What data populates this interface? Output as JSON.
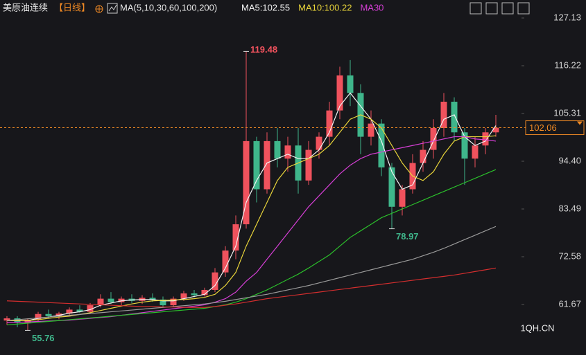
{
  "header": {
    "symbol": "美原油连续",
    "period": "【日线】",
    "indicator": "MA(5,10,30,60,100,200)"
  },
  "watermark": "1QH.CN",
  "chart_data": {
    "type": "candlestick",
    "up_color": "#f0525d",
    "down_color": "#3fb68b",
    "ylim": [
      50.13,
      131.24
    ],
    "yticks": [
      127.13,
      116.22,
      105.31,
      {
        "value": 94.4,
        "label": "94.40"
      },
      83.49,
      72.58,
      61.67
    ],
    "last_price": 102.06,
    "open": [
      58,
      58.5,
      57.5,
      58.2,
      59.5,
      59,
      59.6,
      60.5,
      60,
      61.5,
      63,
      62.2,
      63,
      62.5,
      63.2,
      62.8,
      61.5,
      63,
      64.2,
      63.8,
      65,
      69,
      74,
      80,
      99,
      88,
      99,
      95,
      98,
      90,
      97,
      100,
      106,
      114,
      110,
      100,
      103,
      93,
      84,
      88,
      94,
      97,
      102,
      108,
      101,
      95,
      98,
      101
    ],
    "high": [
      59,
      59,
      58.5,
      60,
      60.5,
      60,
      61,
      61.5,
      62,
      64,
      64.5,
      63.5,
      64,
      63.8,
      64.2,
      63.5,
      63.5,
      64.8,
      65,
      65.5,
      70,
      75,
      82,
      119.48,
      100,
      101,
      102,
      100,
      102,
      99,
      101,
      108,
      116,
      117.5,
      112,
      106,
      104,
      94,
      89,
      96,
      99,
      104,
      110,
      109,
      102,
      100,
      102,
      105
    ],
    "low": [
      57,
      56.5,
      55.76,
      57.8,
      58.5,
      58.3,
      59,
      59.8,
      59.5,
      61,
      61.8,
      61.5,
      62,
      61.8,
      62.3,
      61,
      61.2,
      62.5,
      63.3,
      63.5,
      64.5,
      68,
      72,
      79,
      85,
      87,
      93,
      92,
      87,
      89,
      95,
      98,
      104,
      107,
      96,
      98,
      91,
      78.97,
      82,
      87,
      92,
      95,
      100,
      99,
      89,
      93,
      96,
      100
    ],
    "close": [
      58.5,
      57.5,
      58.2,
      59.5,
      59,
      59.6,
      60.5,
      60,
      61.5,
      63,
      62.2,
      63,
      62.5,
      63.2,
      62.8,
      61.5,
      63,
      64.2,
      63.8,
      65,
      69,
      74,
      80,
      99,
      88,
      99,
      95,
      98,
      90,
      97,
      100,
      106,
      114,
      110,
      100,
      103,
      93,
      84,
      88,
      94,
      97,
      102,
      108,
      101,
      95,
      98,
      101,
      102.06
    ],
    "annotations": [
      {
        "label": "119.48",
        "value": 119.48
      },
      {
        "label": "78.97",
        "value": 78.97
      },
      {
        "label": "55.76",
        "value": 55.76
      }
    ],
    "series": [
      {
        "name": "MA5:102.55",
        "color": "#f2f2f2",
        "values": [
          58,
          58,
          58,
          58.5,
          58.8,
          59.2,
          59.7,
          60,
          60.5,
          61.5,
          62,
          62.5,
          62.7,
          62.8,
          62.8,
          62.5,
          62.5,
          63,
          63.5,
          64,
          66,
          70,
          75,
          85,
          90,
          94,
          95,
          96,
          95,
          95,
          97,
          101,
          107,
          110,
          107,
          104,
          99,
          92,
          88,
          89,
          94,
          99,
          104,
          105,
          100,
          98,
          99,
          102.55
        ]
      },
      {
        "name": "MA10:100.22",
        "color": "#e8d43a",
        "values": [
          58,
          58,
          58,
          58.2,
          58.5,
          58.8,
          59,
          59.4,
          59.8,
          60.3,
          60.8,
          61.3,
          61.8,
          62.2,
          62.5,
          62.6,
          62.7,
          62.8,
          63,
          63.3,
          64,
          66,
          69,
          75,
          80,
          85,
          90,
          93,
          94,
          95,
          96,
          98,
          101,
          104,
          105,
          104,
          102,
          98,
          94,
          91,
          90,
          92,
          96,
          99,
          100,
          100,
          100,
          100.22
        ]
      },
      {
        "name": "MA30",
        "color": "#d63fd6",
        "values": [
          57.5,
          57.6,
          57.7,
          57.8,
          57.9,
          58,
          58.1,
          58.3,
          58.5,
          58.7,
          58.9,
          59.2,
          59.5,
          59.8,
          60.1,
          60.4,
          60.7,
          61,
          61.3,
          61.6,
          62.2,
          63,
          64.5,
          67,
          69,
          72,
          75,
          78,
          81,
          84,
          86.5,
          89,
          91.5,
          93.5,
          95,
          96,
          96.5,
          97,
          97.5,
          98,
          98.5,
          99,
          99.5,
          100,
          100,
          99.5,
          99.3,
          99
        ]
      },
      {
        "color": "#2bbf2b",
        "values": [
          57,
          57.2,
          57.4,
          57.6,
          57.8,
          58,
          58.2,
          58.4,
          58.6,
          58.8,
          59,
          59.2,
          59.4,
          59.6,
          59.8,
          60,
          60.2,
          60.4,
          60.6,
          60.8,
          61.2,
          61.6,
          62.2,
          63,
          64,
          65,
          66.2,
          67.4,
          68.6,
          70,
          71.5,
          73,
          75,
          77,
          78.5,
          80,
          81.5,
          82.5,
          83.5,
          84.5,
          85.5,
          86.5,
          87.5,
          88.5,
          89.5,
          90.5,
          91.5,
          92.5
        ]
      },
      {
        "color": "#9a9a9a",
        "values": [
          58,
          58.2,
          58.4,
          58.6,
          58.8,
          59,
          59.2,
          59.4,
          59.6,
          59.8,
          60,
          60.2,
          60.4,
          60.6,
          60.8,
          61,
          61.2,
          61.4,
          61.6,
          61.8,
          62.1,
          62.4,
          62.8,
          63.2,
          63.6,
          64,
          64.5,
          65,
          65.5,
          66,
          66.6,
          67.2,
          67.8,
          68.4,
          69,
          69.6,
          70.2,
          70.8,
          71.4,
          72,
          72.8,
          73.6,
          74.5,
          75.5,
          76.5,
          77.5,
          78.5,
          79.5
        ]
      },
      {
        "color": "#d42e2e",
        "values": [
          62.5,
          62.4,
          62.3,
          62.2,
          62.1,
          62,
          61.9,
          61.8,
          61.7,
          61.6,
          61.5,
          61.4,
          61.3,
          61.2,
          61.2,
          61.1,
          61.1,
          61,
          61,
          61,
          61.2,
          61.5,
          61.8,
          62.2,
          62.6,
          63,
          63.3,
          63.6,
          63.9,
          64.2,
          64.5,
          64.8,
          65.1,
          65.4,
          65.7,
          66,
          66.3,
          66.6,
          66.9,
          67.2,
          67.5,
          67.8,
          68.1,
          68.4,
          68.8,
          69.2,
          69.6,
          70
        ]
      }
    ]
  }
}
